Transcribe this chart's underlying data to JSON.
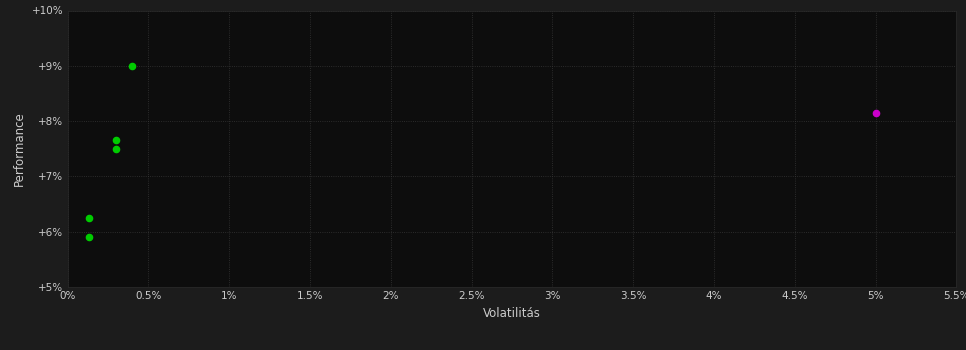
{
  "background_color": "#1c1c1c",
  "plot_bg_color": "#0d0d0d",
  "grid_color": "#3a3a3a",
  "text_color": "#cccccc",
  "xlabel": "Volatilitás",
  "ylabel": "Performance",
  "xlim": [
    0,
    0.055
  ],
  "ylim": [
    0.05,
    0.1
  ],
  "xticks": [
    0.0,
    0.005,
    0.01,
    0.015,
    0.02,
    0.025,
    0.03,
    0.035,
    0.04,
    0.045,
    0.05,
    0.055
  ],
  "xtick_labels": [
    "0%",
    "0.5%",
    "1%",
    "1.5%",
    "2%",
    "2.5%",
    "3%",
    "3.5%",
    "4%",
    "4.5%",
    "5%",
    "5.5%"
  ],
  "yticks": [
    0.05,
    0.06,
    0.07,
    0.08,
    0.09,
    0.1
  ],
  "ytick_labels": [
    "+5%",
    "+6%",
    "+7%",
    "+8%",
    "+9%",
    "+10%"
  ],
  "green_points": [
    [
      0.004,
      0.09
    ],
    [
      0.003,
      0.0765
    ],
    [
      0.003,
      0.075
    ],
    [
      0.0013,
      0.0625
    ],
    [
      0.0013,
      0.059
    ]
  ],
  "magenta_points": [
    [
      0.05,
      0.0815
    ]
  ],
  "green_color": "#00cc00",
  "magenta_color": "#cc00cc",
  "point_size": 20
}
